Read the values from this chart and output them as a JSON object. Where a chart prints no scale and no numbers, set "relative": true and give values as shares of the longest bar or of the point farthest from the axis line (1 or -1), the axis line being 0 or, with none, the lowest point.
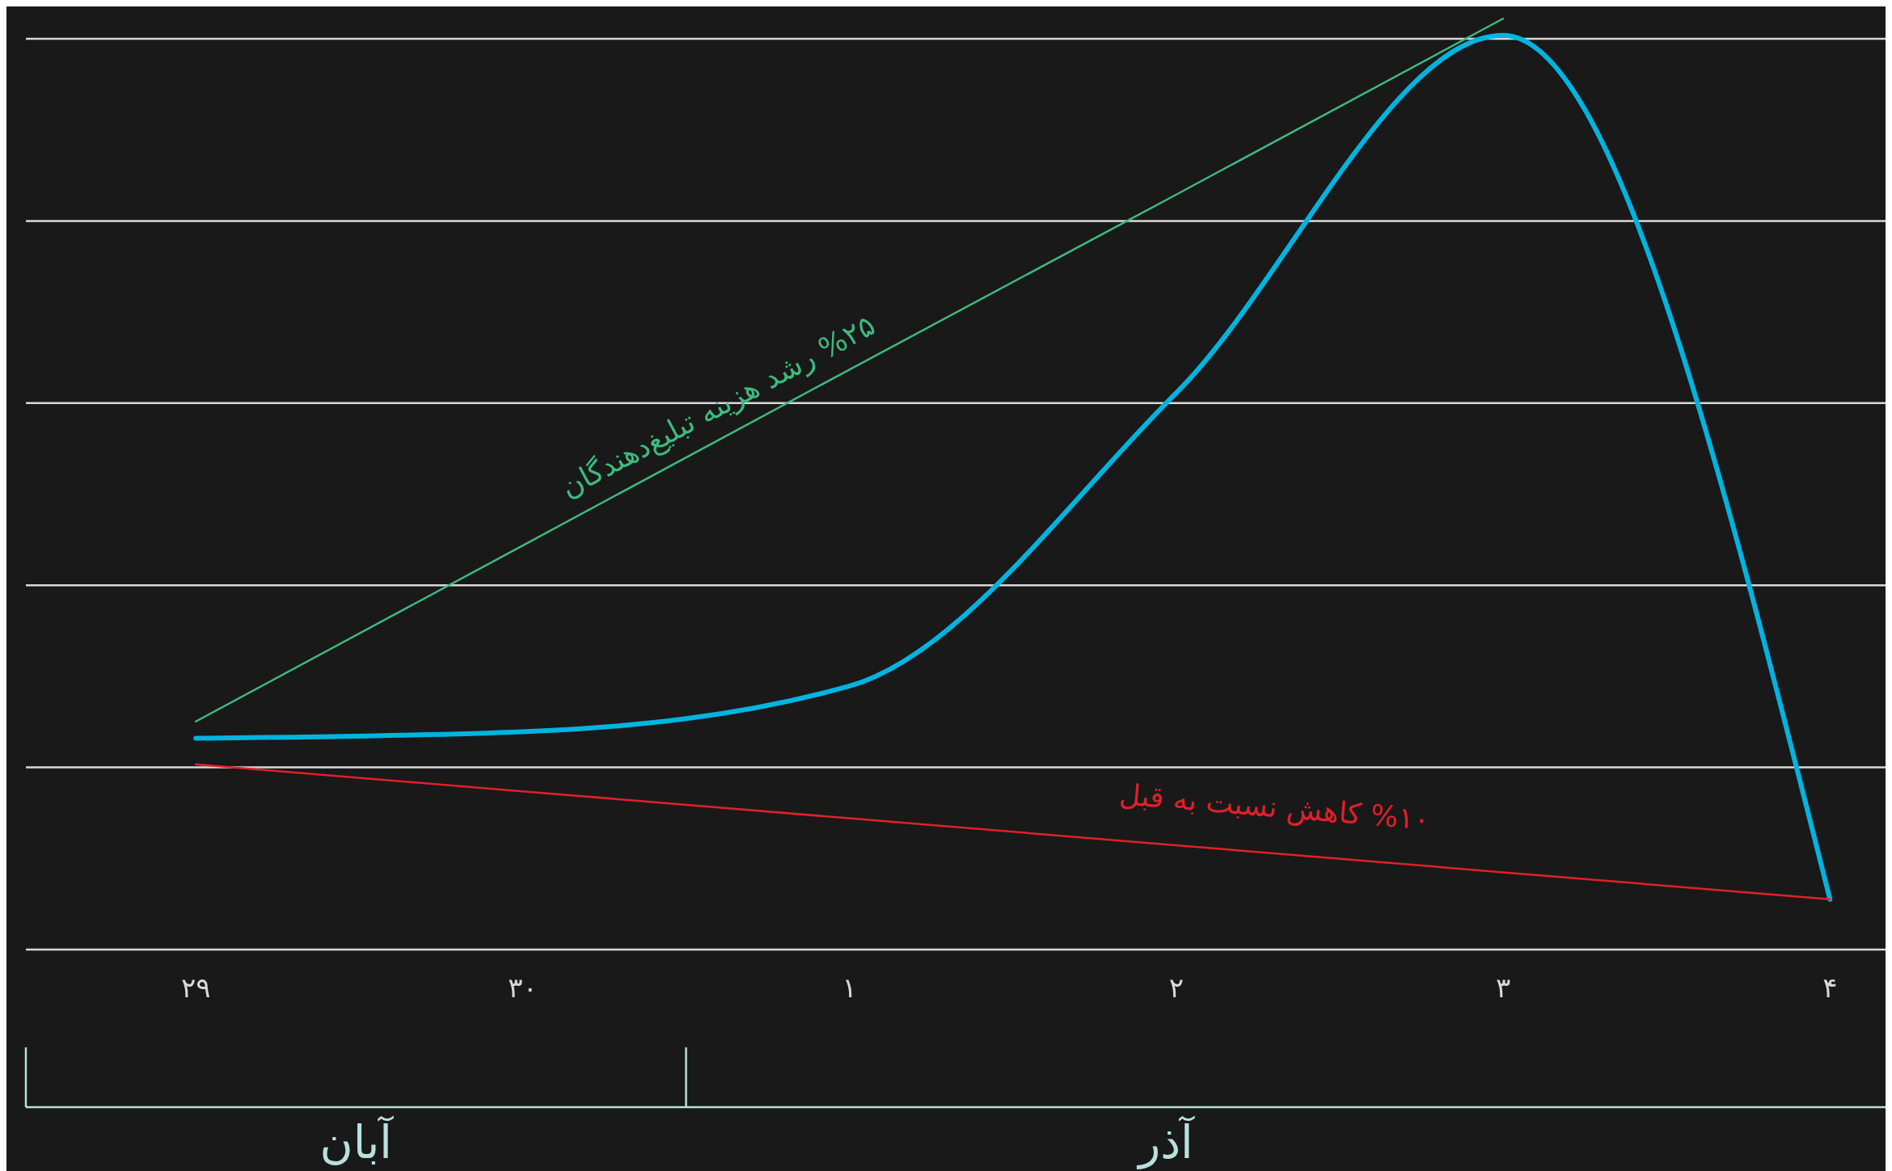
{
  "chart_data": {
    "type": "line",
    "relative": true,
    "grid": "y",
    "tick_labels": "x",
    "categories": [
      "۲۹",
      "۳۰",
      "۱",
      "۲",
      "۳",
      "۴"
    ],
    "series": [
      {
        "color": "#00b4e0",
        "values": [
          0.227,
          0.234,
          0.283,
          0.598,
          0.982,
          0.054
        ]
      },
      {
        "color": "#3dba7e",
        "values": [
          0.245,
          0.434,
          0.623,
          0.811,
          1,
          null
        ]
      },
      {
        "color": "#e0202a",
        "values": [
          0.199,
          0.17,
          0.141,
          0.112,
          0.083,
          0.054
        ]
      }
    ],
    "annotations": [
      "%۲۵ رشد هزینه تبلیغ‌دهندگان",
      "%۱۰ کاهش نسبت به قبل",
      "آبان",
      "آذر"
    ]
  }
}
